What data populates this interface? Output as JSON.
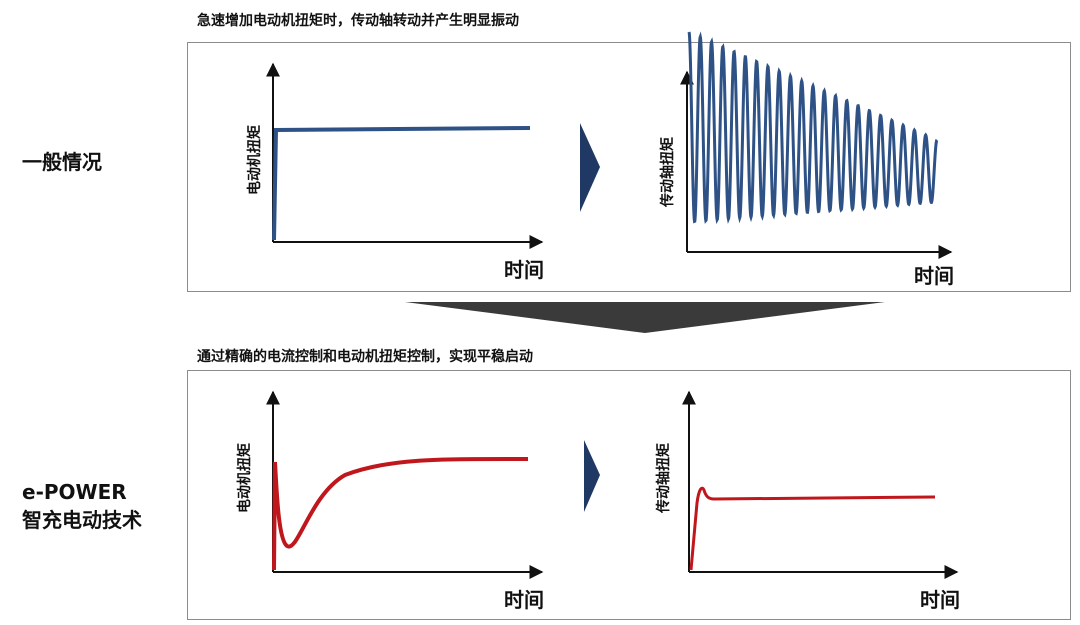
{
  "top": {
    "caption": "急速增加电动机扭矩时，传动轴转动并产生明显振动",
    "row_label": "一般情况",
    "left_chart": {
      "ylabel": "电动机扭矩",
      "xlabel": "时间",
      "line_color": "#2e5286"
    },
    "right_chart": {
      "ylabel": "传动轴扭矩",
      "xlabel": "时间",
      "line_color": "#2e5286"
    }
  },
  "bottom": {
    "caption": "通过精确的电流控制和电动机扭矩控制，实现平稳启动",
    "row_label_line1": "e-POWER",
    "row_label_line2": "智充电动技术",
    "left_chart": {
      "ylabel": "电动机扭矩",
      "xlabel": "时间",
      "line_color": "#c0171d"
    },
    "right_chart": {
      "ylabel": "传动轴扭矩",
      "xlabel": "时间",
      "line_color": "#c0171d"
    }
  },
  "colors": {
    "arrow": "#1f3864",
    "funnel": "#3a3a3a",
    "border": "#8c8c8c"
  },
  "icons": {
    "right_arrow": "chevron-right-icon",
    "down_funnel": "funnel-down-icon"
  }
}
